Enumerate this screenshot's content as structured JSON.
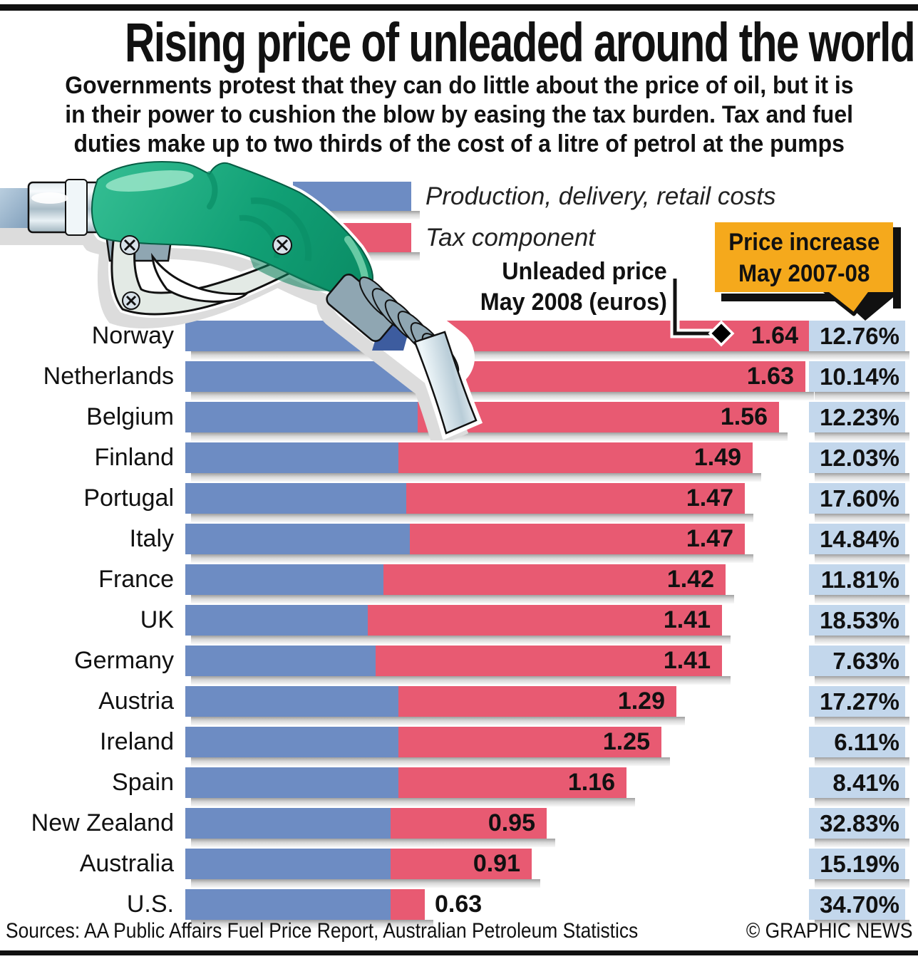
{
  "header": {
    "title": "Rising price of unleaded around the world",
    "subtitle_line1": "Governments protest that they can do little about the price of oil, but it is",
    "subtitle_line2": "in their power to cushion the blow by easing the tax burden. Tax and fuel",
    "subtitle_line3": "duties make up to two thirds of the cost of a litre of petrol at the pumps"
  },
  "legend": {
    "production_label": "Production, delivery, retail costs",
    "tax_label": "Tax component"
  },
  "annotations": {
    "unleaded_line1": "Unleaded price",
    "unleaded_line2": "May 2008 (euros)",
    "callout_line1": "Price increase",
    "callout_line2": "May 2007-08"
  },
  "footer": {
    "sources": "Sources: AA Public Affairs Fuel Price Report, Australian Petroleum Statistics",
    "credit": "© GRAPHIC NEWS"
  },
  "colors": {
    "production_blue": "#6d8cc3",
    "tax_pink": "#e85a72",
    "badge_blue": "#c3d7ec",
    "callout_yellow": "#f5a91c",
    "nozzle_green": "#14a377",
    "bar_black": "#111111"
  },
  "chart_data": {
    "type": "bar",
    "orientation": "horizontal",
    "title": "Rising price of unleaded around the world",
    "unit": "euros per litre, May 2008",
    "xlim": [
      0,
      1.7
    ],
    "grid": false,
    "legend_position": "top",
    "categories": [
      "Norway",
      "Netherlands",
      "Belgium",
      "Finland",
      "Portugal",
      "Italy",
      "France",
      "UK",
      "Germany",
      "Austria",
      "Ireland",
      "Spain",
      "New Zealand",
      "Australia",
      "U.S."
    ],
    "series": [
      {
        "name": "Production, delivery, retail costs",
        "color": "#6d8cc3",
        "values": [
          0.65,
          0.6,
          0.61,
          0.56,
          0.58,
          0.59,
          0.52,
          0.48,
          0.5,
          0.56,
          0.56,
          0.56,
          0.54,
          0.54,
          0.54
        ]
      },
      {
        "name": "Tax component",
        "color": "#e85a72",
        "values": [
          0.99,
          1.03,
          0.95,
          0.93,
          0.89,
          0.88,
          0.9,
          0.93,
          0.91,
          0.73,
          0.69,
          0.6,
          0.41,
          0.37,
          0.09
        ]
      }
    ],
    "totals": [
      1.64,
      1.63,
      1.56,
      1.49,
      1.47,
      1.47,
      1.42,
      1.41,
      1.41,
      1.29,
      1.25,
      1.16,
      0.95,
      0.91,
      0.63
    ],
    "total_labels": [
      "1.64",
      "1.63",
      "1.56",
      "1.49",
      "1.47",
      "1.47",
      "1.42",
      "1.41",
      "1.41",
      "1.29",
      "1.25",
      "1.16",
      "0.95",
      "0.91",
      "0.63"
    ],
    "price_increase_pct": [
      "12.76%",
      "10.14%",
      "12.23%",
      "12.03%",
      "17.60%",
      "14.84%",
      "11.81%",
      "18.53%",
      "7.63%",
      "17.27%",
      "6.11%",
      "8.41%",
      "32.83%",
      "15.19%",
      "34.70%"
    ]
  }
}
